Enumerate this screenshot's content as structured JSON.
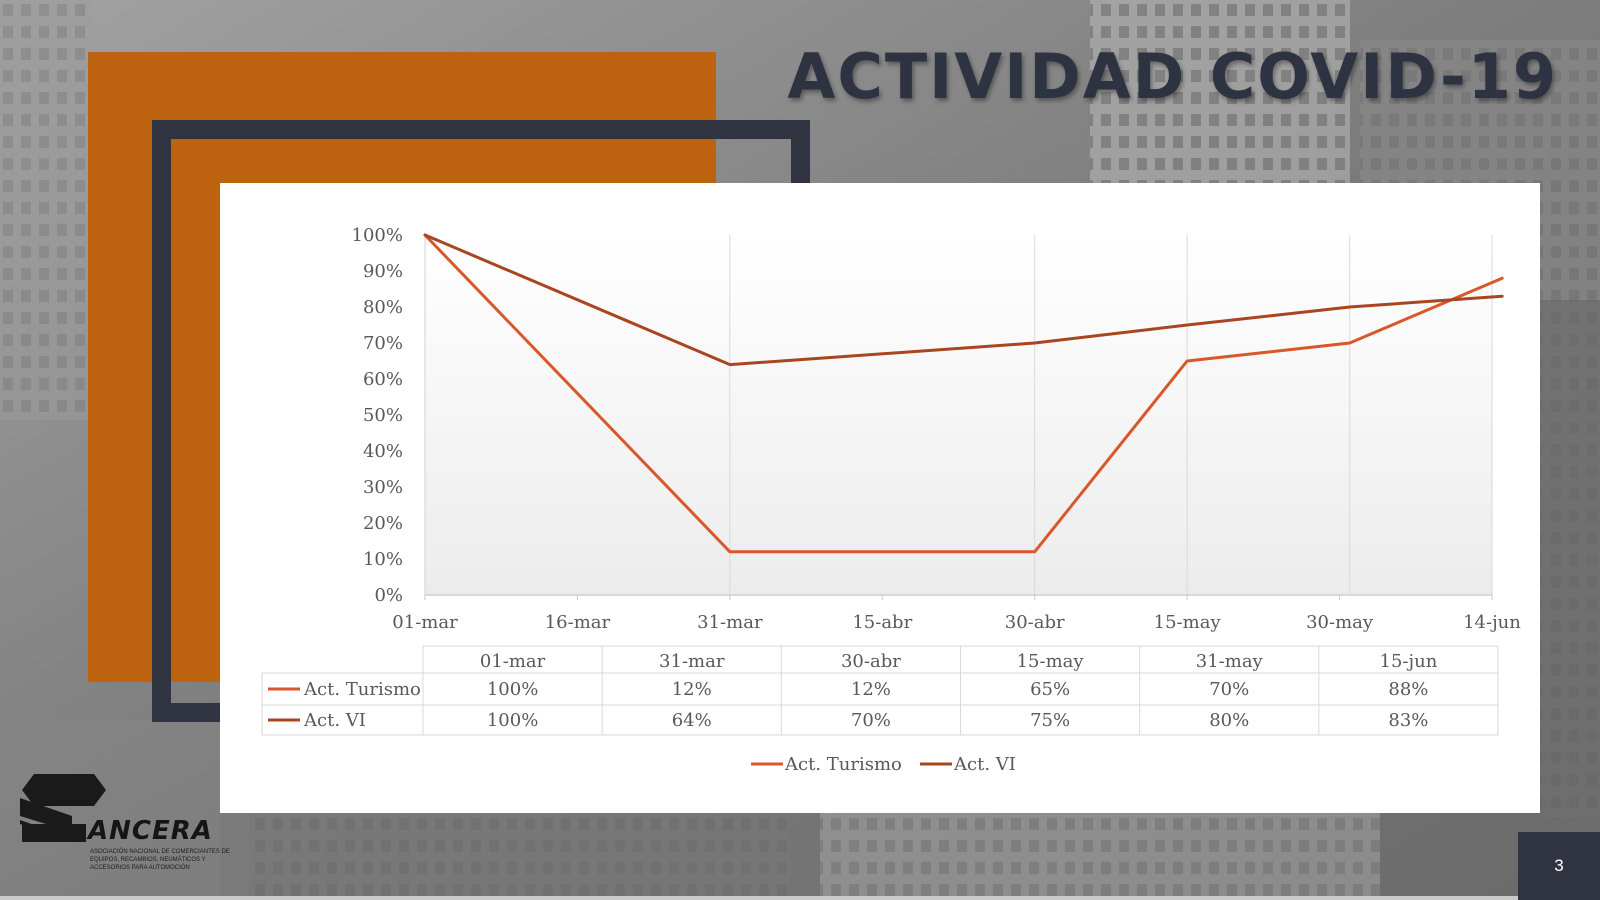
{
  "slide": {
    "title": "ACTIVIDAD COVID-19",
    "page_number": "3",
    "logo": {
      "name": "ANCERA",
      "subtitle": "ASOCIACIÓN NACIONAL DE COMERCIANTES DE EQUIPOS, RECAMBIOS, NEUMÁTICOS Y ACCESORIOS PARA AUTOMOCIÓN"
    },
    "colors": {
      "orange": "#bd620f",
      "navy": "#2f3440",
      "title_text": "#2d3340"
    }
  },
  "chart_data": {
    "type": "line",
    "title": "",
    "xlabel": "",
    "ylabel": "",
    "x_axis": {
      "type": "date",
      "range": [
        "2020-03-01",
        "2020-06-14"
      ],
      "ticks": [
        "2020-03-01",
        "2020-03-16",
        "2020-03-31",
        "2020-04-15",
        "2020-04-30",
        "2020-05-15",
        "2020-05-30",
        "2020-06-14"
      ],
      "tick_labels": [
        "01-mar",
        "16-mar",
        "31-mar",
        "15-abr",
        "30-abr",
        "15-may",
        "30-may",
        "14-jun"
      ]
    },
    "y_axis": {
      "range": [
        0,
        100
      ],
      "ticks": [
        0,
        10,
        20,
        30,
        40,
        50,
        60,
        70,
        80,
        90,
        100
      ],
      "tick_labels": [
        "0%",
        "10%",
        "20%",
        "30%",
        "40%",
        "50%",
        "60%",
        "70%",
        "80%",
        "90%",
        "100%"
      ]
    },
    "grid": "vertical",
    "legend_position": "bottom",
    "categories": [
      "01-mar",
      "31-mar",
      "30-abr",
      "15-may",
      "31-may",
      "15-jun"
    ],
    "x": [
      "2020-03-01",
      "2020-03-31",
      "2020-04-30",
      "2020-05-15",
      "2020-05-31",
      "2020-06-15"
    ],
    "series": [
      {
        "name": "Act. Turismo",
        "color": "#d9572a",
        "values": [
          100,
          12,
          12,
          65,
          70,
          88
        ],
        "labels": [
          "100%",
          "12%",
          "12%",
          "65%",
          "70%",
          "88%"
        ]
      },
      {
        "name": "Act. VI",
        "color": "#a9451f",
        "values": [
          100,
          64,
          70,
          75,
          80,
          83
        ],
        "labels": [
          "100%",
          "64%",
          "70%",
          "75%",
          "80%",
          "83%"
        ]
      }
    ],
    "data_table": true
  }
}
